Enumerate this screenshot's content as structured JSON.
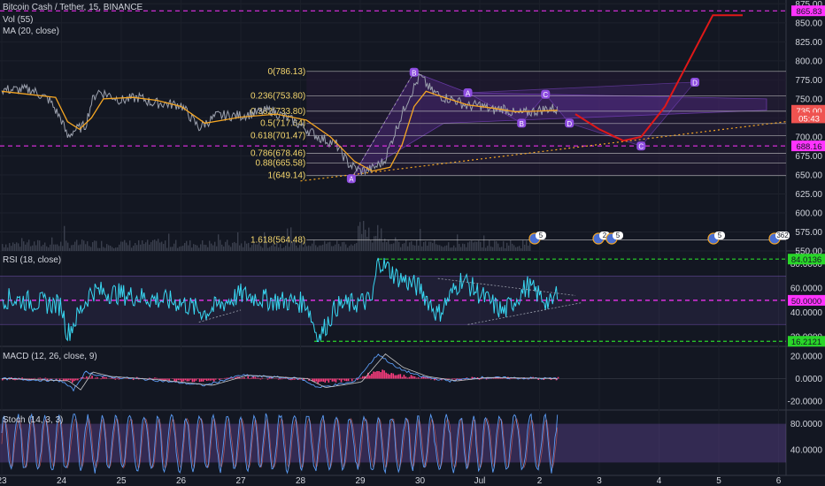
{
  "header": {
    "symbol_line": "Bitcoin Cash / Tether, 15, BINANCE",
    "vol_label": "Vol (55)",
    "ma_label": "MA (20, close)",
    "rsi_label": "RSI (18, close)",
    "macd_label": "MACD (12, 26, close, 9)",
    "stoch_label": "Stoch (14, 3, 3)"
  },
  "colors": {
    "background": "#131722",
    "price": "#9ba0ad",
    "ma": "#f5a623",
    "rsi": "#38d7f2",
    "macd": "#ff3d7f",
    "stoch": "#8d5cc9",
    "projection": "#e01818",
    "green_level": "#29d629",
    "magenta_level": "#ff33ff",
    "pattern_label": "#8e4de0"
  },
  "chart_data": [
    {
      "type": "line",
      "panel": "price",
      "title": "Bitcoin Cash / Tether, 15, BINANCE",
      "x_ticks": [
        "23",
        "24",
        "25",
        "26",
        "27",
        "28",
        "29",
        "30",
        "Jul",
        "2",
        "3",
        "4",
        "5",
        "6"
      ],
      "y_ticks": [
        "875.00",
        "850.00",
        "825.00",
        "800.00",
        "775.00",
        "750.00",
        "725.00",
        "700.00",
        "675.00",
        "650.00",
        "625.00",
        "600.00",
        "575.00",
        "550.00"
      ],
      "ylim": [
        550,
        880
      ],
      "price_path_xy": [
        [
          0,
          762
        ],
        [
          0.5,
          762
        ],
        [
          0.8,
          748
        ],
        [
          1.0,
          722
        ],
        [
          1.1,
          700
        ],
        [
          1.2,
          708
        ],
        [
          1.4,
          715
        ],
        [
          1.5,
          745
        ],
        [
          1.6,
          760
        ],
        [
          1.8,
          755
        ],
        [
          2.0,
          748
        ],
        [
          2.3,
          752
        ],
        [
          2.5,
          745
        ],
        [
          3.0,
          742
        ],
        [
          3.3,
          712
        ],
        [
          3.6,
          728
        ],
        [
          4.0,
          728
        ],
        [
          4.5,
          735
        ],
        [
          4.9,
          720
        ],
        [
          5.3,
          700
        ],
        [
          5.6,
          690
        ],
        [
          5.8,
          665
        ],
        [
          6.0,
          655
        ],
        [
          6.2,
          658
        ],
        [
          6.4,
          668
        ],
        [
          6.6,
          710
        ],
        [
          6.8,
          750
        ],
        [
          7.0,
          780
        ],
        [
          7.2,
          760
        ],
        [
          7.4,
          752
        ],
        [
          7.6,
          748
        ],
        [
          7.8,
          740
        ],
        [
          8.0,
          742
        ],
        [
          8.2,
          735
        ],
        [
          8.4,
          738
        ],
        [
          8.6,
          730
        ],
        [
          8.8,
          732
        ],
        [
          9.0,
          735
        ],
        [
          9.2,
          738
        ],
        [
          9.3,
          735
        ]
      ],
      "ma_path_xy": [
        [
          0,
          760
        ],
        [
          0.9,
          752
        ],
        [
          1.1,
          720
        ],
        [
          1.3,
          710
        ],
        [
          1.5,
          725
        ],
        [
          1.7,
          750
        ],
        [
          2.2,
          752
        ],
        [
          2.6,
          748
        ],
        [
          3.0,
          740
        ],
        [
          3.4,
          718
        ],
        [
          3.7,
          722
        ],
        [
          4.0,
          726
        ],
        [
          4.6,
          730
        ],
        [
          5.1,
          722
        ],
        [
          5.5,
          700
        ],
        [
          5.9,
          668
        ],
        [
          6.2,
          655
        ],
        [
          6.5,
          660
        ],
        [
          6.7,
          690
        ],
        [
          6.9,
          740
        ],
        [
          7.1,
          760
        ],
        [
          7.4,
          752
        ],
        [
          7.8,
          742
        ],
        [
          8.2,
          738
        ],
        [
          8.6,
          733
        ],
        [
          9.0,
          734
        ],
        [
          9.3,
          735
        ]
      ],
      "projection_xy": [
        [
          9.6,
          730
        ],
        [
          10.0,
          710
        ],
        [
          10.4,
          695
        ],
        [
          10.7,
          700
        ],
        [
          11.1,
          740
        ],
        [
          11.5,
          800
        ],
        [
          11.9,
          860
        ],
        [
          12.4,
          860
        ]
      ],
      "fib_levels": [
        {
          "label": "0(786.13)",
          "value": 786.13
        },
        {
          "label": "0.236(753.80)",
          "value": 753.8
        },
        {
          "label": "0.382(733.80)",
          "value": 733.8
        },
        {
          "label": "0.5(717.64)",
          "value": 717.64
        },
        {
          "label": "0.618(701.47)",
          "value": 701.47
        },
        {
          "label": "0.786(678.46)",
          "value": 678.46
        },
        {
          "label": "0.88(665.58)",
          "value": 665.58
        },
        {
          "label": "1(649.14)",
          "value": 649.14
        },
        {
          "label": "1.618(564.48)",
          "value": 564.48
        }
      ],
      "pattern_points": [
        {
          "label": "A",
          "x": 5.85,
          "y": 645
        },
        {
          "label": "B",
          "x": 6.9,
          "y": 785
        },
        {
          "label": "A",
          "x": 7.8,
          "y": 758
        },
        {
          "label": "B",
          "x": 8.7,
          "y": 718
        },
        {
          "label": "C",
          "x": 9.1,
          "y": 756
        },
        {
          "label": "D",
          "x": 9.5,
          "y": 718
        },
        {
          "label": "C",
          "x": 10.7,
          "y": 688
        },
        {
          "label": "D",
          "x": 11.6,
          "y": 772
        }
      ],
      "price_tags": [
        {
          "text": "865.83",
          "value": 865.83,
          "color": "#ff33ff"
        },
        {
          "text": "735.00",
          "value": 735.0,
          "color": "#ef5350"
        },
        {
          "text": "05:43",
          "value": 725.0,
          "color": "#ef5350"
        },
        {
          "text": "688.16",
          "value": 688.16,
          "color": "#ff33ff"
        }
      ],
      "event_badges": [
        "5",
        "2",
        "5",
        "5",
        "362"
      ]
    },
    {
      "type": "line",
      "panel": "rsi",
      "title": "RSI (18, close)",
      "y_ticks": [
        "80.0000",
        "60.0000",
        "40.0000",
        "20.0000"
      ],
      "ylim": [
        12,
        90
      ],
      "levels": [
        {
          "text": "84.0136",
          "value": 84.0136,
          "color": "#29d629"
        },
        {
          "text": "50.0000",
          "value": 50.0,
          "color": "#ff33ff"
        },
        {
          "text": "16.2121",
          "value": 16.2121,
          "color": "#29d629"
        }
      ],
      "band": [
        30,
        70
      ]
    },
    {
      "type": "line",
      "panel": "macd",
      "title": "MACD (12, 26, close, 9)",
      "y_ticks": [
        "20.0000",
        "0.0000",
        "-20.0000"
      ],
      "ylim": [
        -28,
        28
      ]
    },
    {
      "type": "line",
      "panel": "stoch",
      "title": "Stoch (14, 3, 3)",
      "y_ticks": [
        "80.0000",
        "40.0000"
      ],
      "ylim": [
        0,
        100
      ],
      "band": [
        20,
        80
      ]
    }
  ]
}
